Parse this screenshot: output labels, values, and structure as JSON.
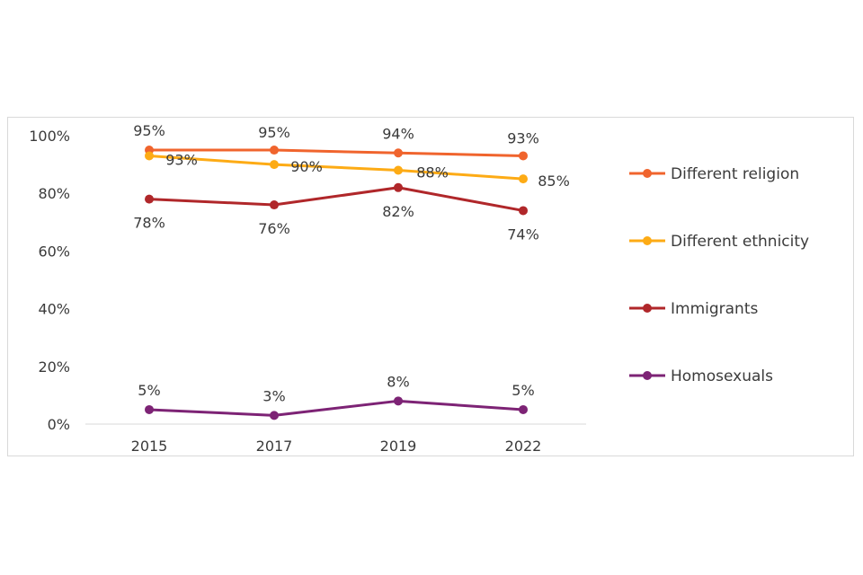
{
  "chart_data": {
    "type": "line",
    "x": [
      "2015",
      "2017",
      "2019",
      "2022"
    ],
    "ylim": [
      0,
      100
    ],
    "y_ticks": [
      "0%",
      "20%",
      "40%",
      "60%",
      "80%",
      "100%"
    ],
    "y_tick_values": [
      0,
      20,
      40,
      60,
      80,
      100
    ],
    "grid": false,
    "legend_position": "right",
    "series": [
      {
        "name": "Different religion",
        "color": "#f0642d",
        "values": [
          95,
          95,
          94,
          93
        ],
        "labels": [
          "95%",
          "95%",
          "94%",
          "93%"
        ]
      },
      {
        "name": "Different ethnicity",
        "color": "#fdab15",
        "values": [
          93,
          90,
          88,
          85
        ],
        "labels": [
          "93%",
          "90%",
          "88%",
          "85%"
        ]
      },
      {
        "name": "Immigrants",
        "color": "#b0272a",
        "values": [
          78,
          76,
          82,
          74
        ],
        "labels": [
          "78%",
          "76%",
          "82%",
          "74%"
        ]
      },
      {
        "name": "Homosexuals",
        "color": "#7d2375",
        "values": [
          5,
          3,
          8,
          5
        ],
        "labels": [
          "5%",
          "3%",
          "8%",
          "5%"
        ]
      }
    ]
  }
}
